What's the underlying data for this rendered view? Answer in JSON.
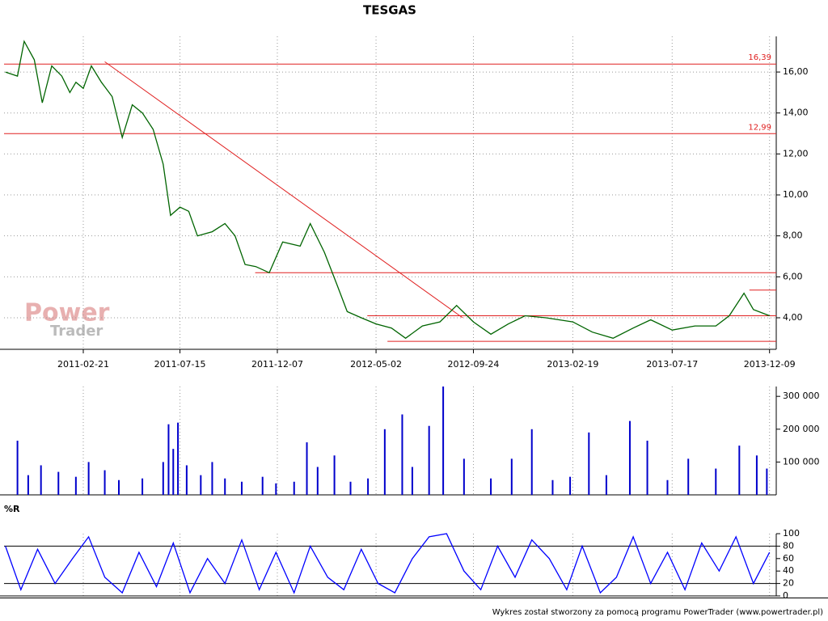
{
  "chart_data": [
    {
      "type": "line",
      "title": "TESGAS",
      "x": [
        "2010-10-28",
        "2010-11-15",
        "2010-11-25",
        "2010-12-10",
        "2010-12-22",
        "2011-01-05",
        "2011-01-20",
        "2011-02-01",
        "2011-02-10",
        "2011-02-21",
        "2011-03-05",
        "2011-03-20",
        "2011-04-05",
        "2011-04-20",
        "2011-05-05",
        "2011-05-20",
        "2011-06-05",
        "2011-06-20",
        "2011-07-01",
        "2011-07-15",
        "2011-07-28",
        "2011-08-10",
        "2011-09-01",
        "2011-09-20",
        "2011-10-05",
        "2011-10-20",
        "2011-11-05",
        "2011-11-25",
        "2011-12-15",
        "2012-01-10",
        "2012-01-25",
        "2012-02-15",
        "2012-03-05",
        "2012-03-20",
        "2012-04-10",
        "2012-05-02",
        "2012-05-25",
        "2012-06-15",
        "2012-07-10",
        "2012-08-05",
        "2012-08-30",
        "2012-09-24",
        "2012-10-20",
        "2012-11-15",
        "2012-12-10",
        "2013-01-10",
        "2013-02-19",
        "2013-03-20",
        "2013-04-20",
        "2013-05-20",
        "2013-06-15",
        "2013-07-17",
        "2013-08-20",
        "2013-09-20",
        "2013-10-10",
        "2013-11-01",
        "2013-11-15",
        "2013-12-09"
      ],
      "series": [
        {
          "color": "#006400",
          "values": [
            16.0,
            15.8,
            17.5,
            16.6,
            14.5,
            16.3,
            15.8,
            15.0,
            15.5,
            15.2,
            16.3,
            15.5,
            14.8,
            12.8,
            14.4,
            14.0,
            13.2,
            11.5,
            9.0,
            9.4,
            9.2,
            8.0,
            8.2,
            8.6,
            8.0,
            6.6,
            6.5,
            6.2,
            7.7,
            7.5,
            8.6,
            7.2,
            5.6,
            4.3,
            4.0,
            3.7,
            3.5,
            3.0,
            3.6,
            3.8,
            4.6,
            3.8,
            3.2,
            3.7,
            4.1,
            4.0,
            3.8,
            3.3,
            3.0,
            3.5,
            3.9,
            3.4,
            3.6,
            3.6,
            4.1,
            5.2,
            4.4,
            4.1
          ]
        }
      ],
      "xlim": [
        "2010-10-26",
        "2013-12-19"
      ],
      "xticks": [
        "2011-02-21",
        "2011-07-15",
        "2011-12-07",
        "2012-05-02",
        "2012-09-24",
        "2013-02-19",
        "2013-07-17",
        "2013-12-09"
      ],
      "ylim": [
        2.46,
        17.74
      ],
      "yticks": [
        {
          "value": 4,
          "label": "4,00"
        },
        {
          "value": 6,
          "label": "6,00"
        },
        {
          "value": 8,
          "label": "8,00"
        },
        {
          "value": 10,
          "label": "10,00"
        },
        {
          "value": 12,
          "label": "12,00"
        },
        {
          "value": 14,
          "label": "14,00"
        },
        {
          "value": 16,
          "label": "16,00"
        }
      ],
      "grid": true,
      "hlines": [
        {
          "value": 16.39,
          "label": "16,39"
        },
        {
          "value": 12.99,
          "label": "12,99"
        }
      ],
      "support_lines": [
        {
          "from": "2011-11-04",
          "value": 6.2
        },
        {
          "from": "2012-04-19",
          "value": 4.1
        },
        {
          "from": "2012-05-19",
          "value": 2.85
        },
        {
          "from": "2013-11-09",
          "value": 5.35
        }
      ],
      "trend_line": {
        "x": [
          "2011-03-25",
          "2012-09-08"
        ],
        "values": [
          16.5,
          4.0
        ]
      },
      "watermark": [
        "Power",
        "Trader"
      ]
    },
    {
      "type": "bar",
      "x": [
        "2010-11-15",
        "2010-12-01",
        "2010-12-20",
        "2011-01-15",
        "2011-02-10",
        "2011-03-01",
        "2011-03-25",
        "2011-04-15",
        "2011-05-20",
        "2011-06-20",
        "2011-06-28",
        "2011-07-05",
        "2011-07-12",
        "2011-07-25",
        "2011-08-15",
        "2011-09-01",
        "2011-09-20",
        "2011-10-15",
        "2011-11-15",
        "2011-12-05",
        "2012-01-01",
        "2012-01-20",
        "2012-02-05",
        "2012-03-01",
        "2012-03-25",
        "2012-04-20",
        "2012-05-15",
        "2012-06-10",
        "2012-06-25",
        "2012-07-20",
        "2012-08-10",
        "2012-09-10",
        "2012-10-20",
        "2012-11-20",
        "2012-12-20",
        "2013-01-20",
        "2013-02-15",
        "2013-03-15",
        "2013-04-10",
        "2013-05-15",
        "2013-06-10",
        "2013-07-10",
        "2013-08-10",
        "2013-09-20",
        "2013-10-25",
        "2013-11-20",
        "2013-12-05"
      ],
      "values": [
        165000,
        60000,
        90000,
        70000,
        55000,
        100000,
        75000,
        45000,
        50000,
        100000,
        215000,
        140000,
        220000,
        90000,
        60000,
        100000,
        50000,
        40000,
        55000,
        35000,
        40000,
        160000,
        85000,
        120000,
        40000,
        50000,
        200000,
        245000,
        85000,
        210000,
        330000,
        110000,
        50000,
        110000,
        200000,
        45000,
        55000,
        190000,
        60000,
        225000,
        165000,
        45000,
        110000,
        80000,
        150000,
        120000,
        80000
      ],
      "color": "#0000cc",
      "ylim": [
        0,
        330000
      ],
      "yticks": [
        {
          "value": 100000,
          "label": "100 000"
        },
        {
          "value": 200000,
          "label": "200 000"
        },
        {
          "value": 300000,
          "label": "300 000"
        }
      ]
    },
    {
      "type": "line",
      "title": "%R",
      "x": [
        "2010-10-28",
        "2010-11-20",
        "2010-12-15",
        "2011-01-10",
        "2011-02-05",
        "2011-03-01",
        "2011-03-25",
        "2011-04-20",
        "2011-05-15",
        "2011-06-10",
        "2011-07-05",
        "2011-07-30",
        "2011-08-25",
        "2011-09-20",
        "2011-10-15",
        "2011-11-10",
        "2011-12-05",
        "2012-01-01",
        "2012-01-25",
        "2012-02-20",
        "2012-03-15",
        "2012-04-10",
        "2012-05-05",
        "2012-05-30",
        "2012-06-25",
        "2012-07-20",
        "2012-08-15",
        "2012-09-10",
        "2012-10-05",
        "2012-10-30",
        "2012-11-25",
        "2012-12-20",
        "2013-01-15",
        "2013-02-10",
        "2013-03-05",
        "2013-04-01",
        "2013-04-25",
        "2013-05-20",
        "2013-06-15",
        "2013-07-10",
        "2013-08-05",
        "2013-08-30",
        "2013-09-25",
        "2013-10-20",
        "2013-11-15",
        "2013-12-09"
      ],
      "series": [
        {
          "color": "#0000ff",
          "values": [
            80,
            10,
            75,
            20,
            60,
            95,
            30,
            5,
            70,
            15,
            85,
            5,
            60,
            20,
            90,
            10,
            70,
            5,
            80,
            30,
            10,
            75,
            20,
            5,
            60,
            95,
            100,
            40,
            10,
            80,
            30,
            90,
            60,
            10,
            80,
            5,
            30,
            95,
            20,
            70,
            10,
            85,
            40,
            95,
            20,
            70
          ]
        }
      ],
      "ylim": [
        0,
        100
      ],
      "yticks": [
        0,
        20,
        40,
        60,
        80,
        100
      ],
      "reference_lines": [
        20,
        80
      ]
    }
  ],
  "credit": "Wykres został stworzony za pomocą programu PowerTrader (www.powertrader.pl)"
}
